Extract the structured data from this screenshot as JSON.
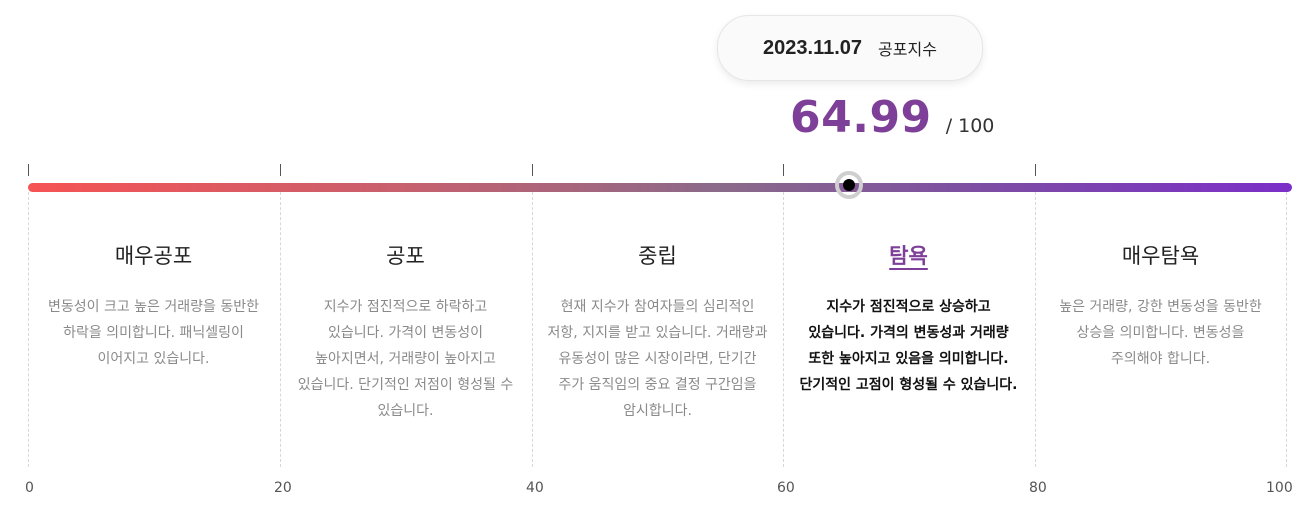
{
  "tooltip": {
    "date": "2023.11.07",
    "label": "공포지수"
  },
  "score": {
    "value": "64.99",
    "max": "/ 100",
    "fraction": 0.6499
  },
  "zones": [
    {
      "title": "매우공포",
      "desc": "변동성이 크고 높은 거래량을 동반한 하락을 의미합니다. 패닉셀링이 이어지고 있습니다."
    },
    {
      "title": "공포",
      "desc": "지수가 점진적으로 하락하고 있습니다. 가격이 변동성이 높아지면서, 거래량이 높아지고 있습니다. 단기적인 저점이 형성될 수 있습니다."
    },
    {
      "title": "중립",
      "desc": "현재 지수가 참여자들의 심리적인 저항, 지지를 받고 있습니다. 거래량과 유동성이 많은 시장이라면, 단기간 주가 움직임의 중요 결정 구간임을 암시합니다."
    },
    {
      "title": "탐욕",
      "desc": "지수가 점진적으로 상승하고 있습니다. 가격의 변동성과 거래량 또한 높아지고 있음을 의미합니다. 단기적인 고점이 형성될 수 있습니다.",
      "active": true
    },
    {
      "title": "매우탐욕",
      "desc": "높은 거래량, 강한 변동성을 동반한 상승을 의미합니다. 변동성을 주의해야 합니다."
    }
  ],
  "axis": [
    "0",
    "20",
    "40",
    "60",
    "80",
    "100"
  ],
  "colors": {
    "accent": "#7d3f98",
    "gradient_start": "#f65354",
    "gradient_end": "#7b2fc8"
  }
}
